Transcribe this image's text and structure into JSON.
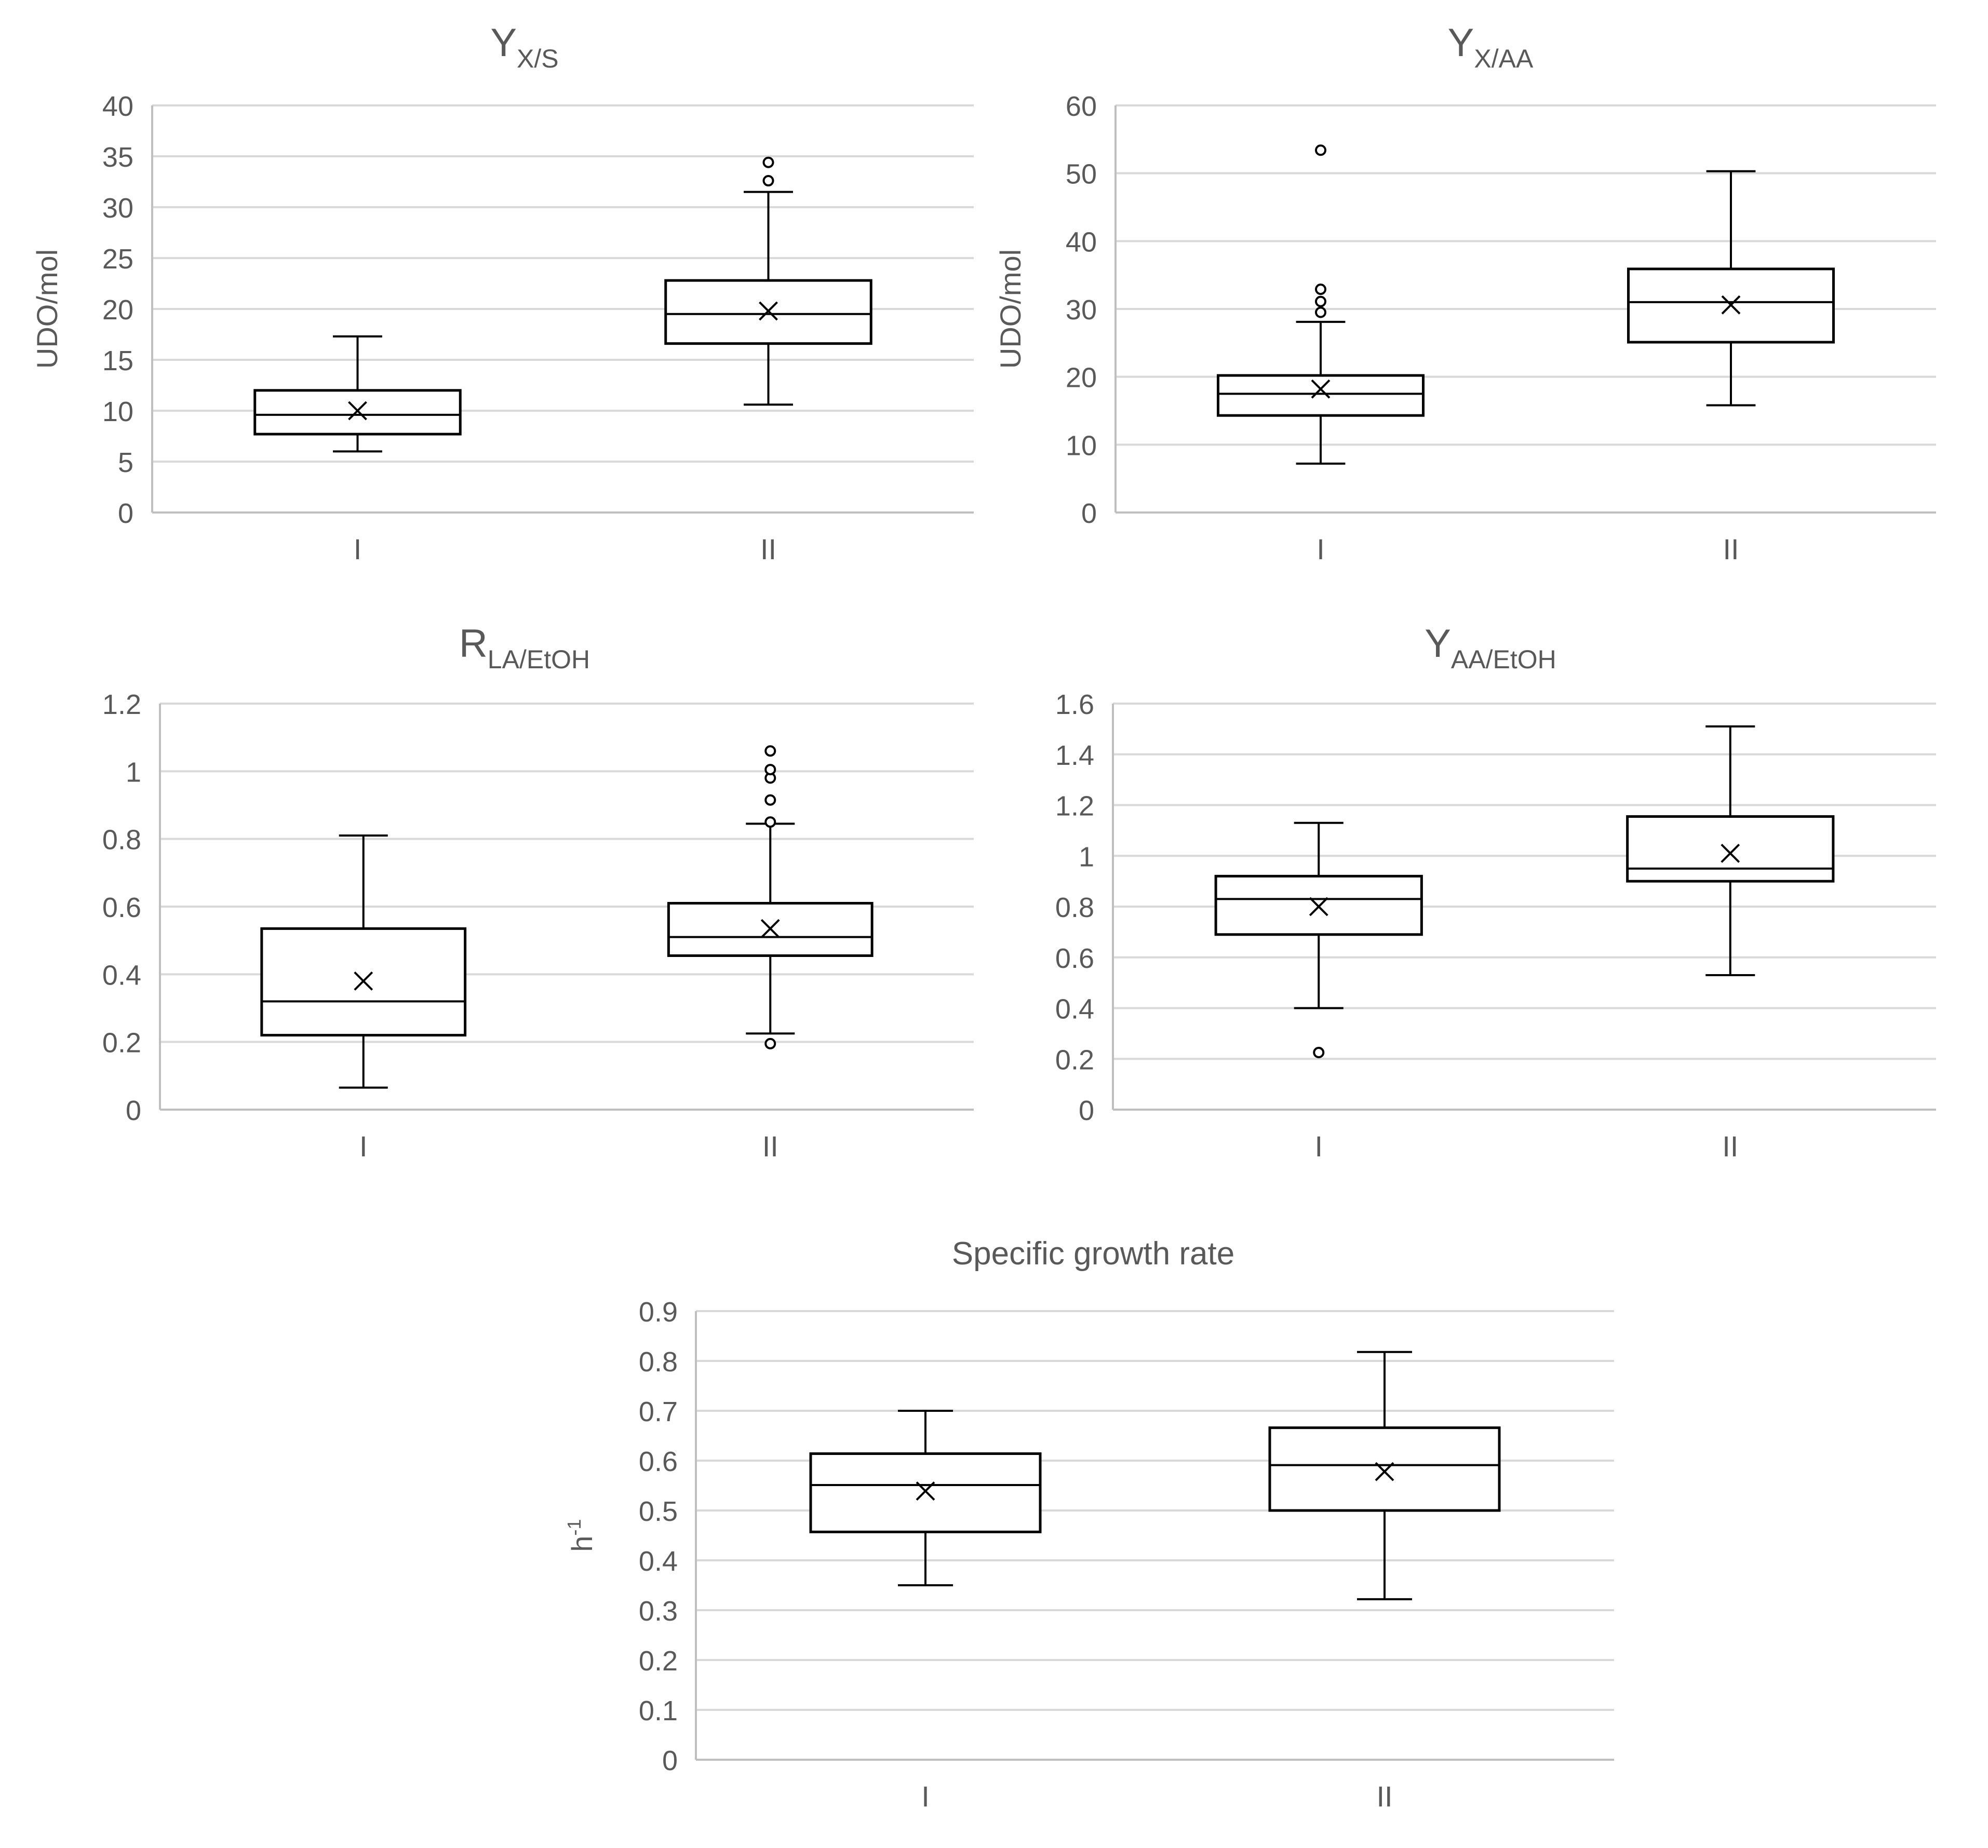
{
  "colors": {
    "background": "#ffffff",
    "gridline": "#d9d9d9",
    "axis": "#bfbfbf",
    "box": "#000000",
    "text": "#595959"
  },
  "chart_data": [
    {
      "type": "box",
      "title_main": "Y",
      "title_sub": "X/S",
      "ylabel": "UDO/mol",
      "ylabel_sup": "",
      "ylim": [
        0,
        40
      ],
      "yticks": [
        0,
        5,
        10,
        15,
        20,
        25,
        30,
        35,
        40
      ],
      "ytick_labels": [
        "0",
        "5",
        "10",
        "15",
        "20",
        "25",
        "30",
        "35",
        "40"
      ],
      "categories": [
        "I",
        "II"
      ],
      "boxes": [
        {
          "category": "I",
          "whisker_low": 6.0,
          "q1": 7.7,
          "median": 9.6,
          "q3": 12.0,
          "whisker_high": 17.3,
          "mean": 10.0,
          "outliers": []
        },
        {
          "category": "II",
          "whisker_low": 10.6,
          "q1": 16.6,
          "median": 19.5,
          "q3": 22.8,
          "whisker_high": 31.5,
          "mean": 19.8,
          "outliers": [
            32.6,
            34.4
          ]
        }
      ]
    },
    {
      "type": "box",
      "title_main": "Y",
      "title_sub": "X/AA",
      "ylabel": "UDO/mol",
      "ylabel_sup": "",
      "ylim": [
        0,
        60
      ],
      "yticks": [
        0,
        10,
        20,
        30,
        40,
        50,
        60
      ],
      "ytick_labels": [
        "0",
        "10",
        "20",
        "30",
        "40",
        "50",
        "60"
      ],
      "categories": [
        "I",
        "II"
      ],
      "boxes": [
        {
          "category": "I",
          "whisker_low": 7.2,
          "q1": 14.3,
          "median": 17.5,
          "q3": 20.2,
          "whisker_high": 28.1,
          "mean": 18.2,
          "outliers": [
            29.5,
            31.1,
            32.9,
            53.4
          ]
        },
        {
          "category": "II",
          "whisker_low": 15.8,
          "q1": 25.1,
          "median": 31.0,
          "q3": 35.9,
          "whisker_high": 50.3,
          "mean": 30.6,
          "outliers": []
        }
      ]
    },
    {
      "type": "box",
      "title_main": "R",
      "title_sub": "LA/EtOH",
      "ylabel": "",
      "ylabel_sup": "",
      "ylim": [
        0,
        1.2
      ],
      "yticks": [
        0,
        0.2,
        0.4,
        0.6,
        0.8,
        1.0,
        1.2
      ],
      "ytick_labels": [
        "0",
        "0.2",
        "0.4",
        "0.6",
        "0.8",
        "1",
        "1.2"
      ],
      "categories": [
        "I",
        "II"
      ],
      "boxes": [
        {
          "category": "I",
          "whisker_low": 0.065,
          "q1": 0.22,
          "median": 0.32,
          "q3": 0.535,
          "whisker_high": 0.81,
          "mean": 0.38,
          "outliers": []
        },
        {
          "category": "II",
          "whisker_low": 0.225,
          "q1": 0.455,
          "median": 0.51,
          "q3": 0.61,
          "whisker_high": 0.845,
          "mean": 0.535,
          "outliers": [
            0.195,
            0.85,
            0.915,
            0.98,
            1.005,
            1.06
          ]
        }
      ]
    },
    {
      "type": "box",
      "title_main": "Y",
      "title_sub": "AA/EtOH",
      "ylabel": "",
      "ylabel_sup": "",
      "ylim": [
        0,
        1.6
      ],
      "yticks": [
        0,
        0.2,
        0.4,
        0.6,
        0.8,
        1.0,
        1.2,
        1.4,
        1.6
      ],
      "ytick_labels": [
        "0",
        "0.2",
        "0.4",
        "0.6",
        "0.8",
        "1",
        "1.2",
        "1.4",
        "1.6"
      ],
      "categories": [
        "I",
        "II"
      ],
      "boxes": [
        {
          "category": "I",
          "whisker_low": 0.4,
          "q1": 0.69,
          "median": 0.83,
          "q3": 0.92,
          "whisker_high": 1.13,
          "mean": 0.8,
          "outliers": [
            0.225
          ]
        },
        {
          "category": "II",
          "whisker_low": 0.53,
          "q1": 0.9,
          "median": 0.95,
          "q3": 1.155,
          "whisker_high": 1.51,
          "mean": 1.01,
          "outliers": []
        }
      ]
    },
    {
      "type": "box",
      "title_main": "Specific growth rate",
      "title_sub": "",
      "ylabel": "h",
      "ylabel_sup": "-1",
      "ylim": [
        0,
        0.9
      ],
      "yticks": [
        0,
        0.1,
        0.2,
        0.3,
        0.4,
        0.5,
        0.6,
        0.7,
        0.8,
        0.9
      ],
      "ytick_labels": [
        "0",
        "0.1",
        "0.2",
        "0.3",
        "0.4",
        "0.5",
        "0.6",
        "0.7",
        "0.8",
        "0.9"
      ],
      "categories": [
        "I",
        "II"
      ],
      "boxes": [
        {
          "category": "I",
          "whisker_low": 0.35,
          "q1": 0.457,
          "median": 0.551,
          "q3": 0.614,
          "whisker_high": 0.7,
          "mean": 0.539,
          "outliers": []
        },
        {
          "category": "II",
          "whisker_low": 0.322,
          "q1": 0.5,
          "median": 0.591,
          "q3": 0.666,
          "whisker_high": 0.818,
          "mean": 0.578,
          "outliers": []
        }
      ]
    }
  ]
}
